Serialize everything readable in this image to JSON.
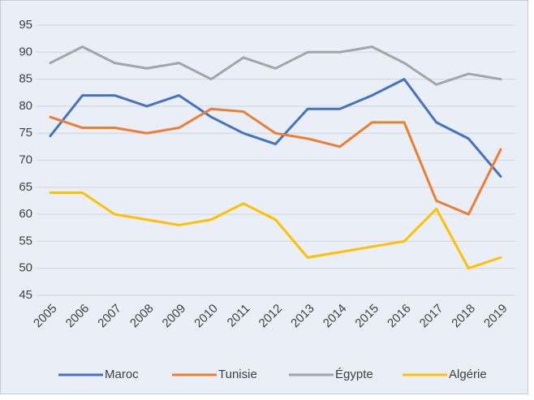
{
  "chart_data": {
    "type": "line",
    "categories": [
      "2005",
      "2006",
      "2007",
      "2008",
      "2009",
      "2010",
      "2011",
      "2012",
      "2013",
      "2014",
      "2015",
      "2016",
      "2017",
      "2018",
      "2019"
    ],
    "series": [
      {
        "name": "Maroc",
        "color": "#4472c4",
        "values": [
          74.5,
          82,
          82,
          80,
          82,
          78,
          75,
          73,
          79.5,
          79.5,
          82,
          85,
          77,
          74,
          67
        ]
      },
      {
        "name": "Tunisie",
        "color": "#ed7d31",
        "values": [
          78,
          76,
          76,
          75,
          76,
          79.5,
          79,
          75,
          74,
          72.5,
          77,
          77,
          62.5,
          60,
          72
        ]
      },
      {
        "name": "Égypte",
        "color": "#a5a5a5",
        "values": [
          88,
          91,
          88,
          87,
          88,
          85,
          89,
          87,
          90,
          90,
          91,
          88,
          84,
          86,
          85
        ]
      },
      {
        "name": "Algérie",
        "color": "#ffc000",
        "values": [
          64,
          64,
          60,
          59,
          58,
          59,
          62,
          59,
          52,
          53,
          54,
          55,
          61,
          50,
          52
        ]
      }
    ],
    "ylim": [
      45,
      95
    ],
    "yticks": [
      45,
      50,
      55,
      60,
      65,
      70,
      75,
      80,
      85,
      90,
      95
    ],
    "grid": true,
    "legend": "bottom"
  }
}
